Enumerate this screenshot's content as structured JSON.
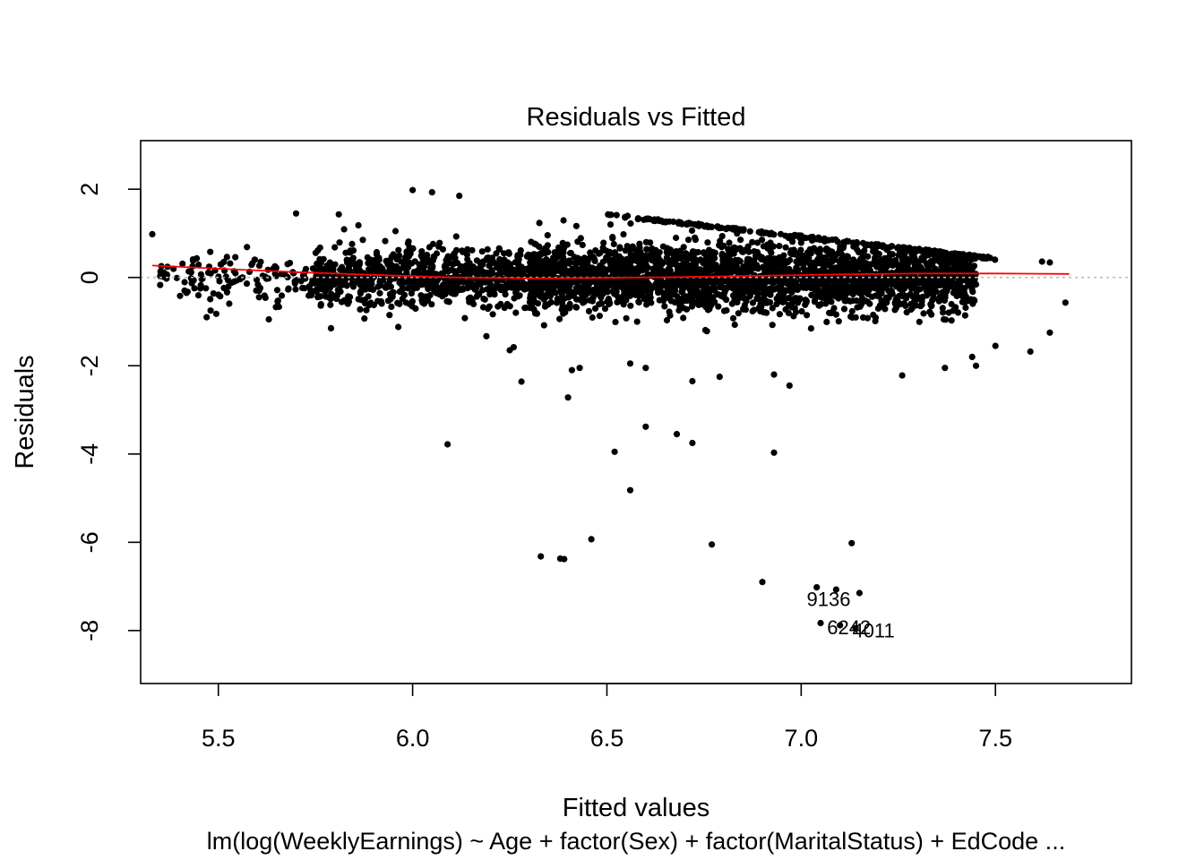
{
  "chart_data": {
    "type": "scatter",
    "title": "Residuals vs Fitted",
    "xlabel": "Fitted values",
    "ylabel": "Residuals",
    "caption": "lm(log(WeeklyEarnings) ~ Age + factor(Sex) + factor(MaritalStatus) + EdCode ...",
    "xlim": [
      5.3,
      7.85
    ],
    "ylim": [
      -9.2,
      3.1
    ],
    "x_ticks": [
      5.5,
      6.0,
      6.5,
      7.0,
      7.5
    ],
    "x_tick_labels": [
      "5.5",
      "6.0",
      "6.5",
      "7.0",
      "7.5"
    ],
    "y_ticks": [
      -8,
      -6,
      -4,
      -2,
      0,
      2
    ],
    "y_tick_labels": [
      "-8",
      "-6",
      "-4",
      "-2",
      "0",
      "2"
    ],
    "reference_line": {
      "y": 0,
      "style": "dotted",
      "color": "#bbbbbb"
    },
    "smoother": {
      "color": "#ff0000",
      "x": [
        5.33,
        5.5,
        5.7,
        5.9,
        6.1,
        6.3,
        6.5,
        6.7,
        6.9,
        7.1,
        7.3,
        7.5,
        7.69
      ],
      "y": [
        0.27,
        0.2,
        0.12,
        0.06,
        0.0,
        -0.02,
        -0.01,
        0.01,
        0.04,
        0.07,
        0.09,
        0.09,
        0.08
      ]
    },
    "point_color": "#000000",
    "point_clouds": [
      {
        "x_range": [
          6.3,
          7.45
        ],
        "residual_sd": 0.38,
        "count": 2600
      },
      {
        "x_range": [
          5.75,
          6.35
        ],
        "residual_sd": 0.33,
        "count": 800
      },
      {
        "x_range": [
          5.35,
          5.8
        ],
        "residual_sd": 0.28,
        "count": 150
      }
    ],
    "upper_envelope": {
      "x": [
        6.5,
        7.5
      ],
      "y": [
        1.45,
        0.45
      ]
    },
    "outliers": [
      {
        "x": 6.0,
        "y": 1.98
      },
      {
        "x": 6.05,
        "y": 1.93
      },
      {
        "x": 6.12,
        "y": 1.85
      },
      {
        "x": 5.33,
        "y": 0.98
      },
      {
        "x": 5.7,
        "y": 1.45
      },
      {
        "x": 5.81,
        "y": 1.43
      },
      {
        "x": 5.47,
        "y": -0.9
      },
      {
        "x": 5.48,
        "y": -0.75
      },
      {
        "x": 5.63,
        "y": -0.95
      },
      {
        "x": 5.79,
        "y": -1.15
      },
      {
        "x": 6.19,
        "y": -1.33
      },
      {
        "x": 6.26,
        "y": -1.58
      },
      {
        "x": 6.25,
        "y": -1.65
      },
      {
        "x": 6.28,
        "y": -2.36
      },
      {
        "x": 6.41,
        "y": -2.1
      },
      {
        "x": 6.43,
        "y": -2.05
      },
      {
        "x": 6.4,
        "y": -2.72
      },
      {
        "x": 6.56,
        "y": -1.95
      },
      {
        "x": 6.6,
        "y": -2.05
      },
      {
        "x": 6.72,
        "y": -2.35
      },
      {
        "x": 6.79,
        "y": -2.25
      },
      {
        "x": 6.93,
        "y": -2.2
      },
      {
        "x": 6.97,
        "y": -2.45
      },
      {
        "x": 7.26,
        "y": -2.22
      },
      {
        "x": 7.37,
        "y": -2.05
      },
      {
        "x": 7.45,
        "y": -2.0
      },
      {
        "x": 7.44,
        "y": -1.8
      },
      {
        "x": 7.5,
        "y": -1.55
      },
      {
        "x": 7.59,
        "y": -1.68
      },
      {
        "x": 7.64,
        "y": -1.25
      },
      {
        "x": 7.68,
        "y": -0.57
      },
      {
        "x": 7.62,
        "y": 0.36
      },
      {
        "x": 7.64,
        "y": 0.34
      },
      {
        "x": 6.09,
        "y": -3.78
      },
      {
        "x": 6.52,
        "y": -3.95
      },
      {
        "x": 6.56,
        "y": -4.82
      },
      {
        "x": 6.6,
        "y": -3.38
      },
      {
        "x": 6.68,
        "y": -3.55
      },
      {
        "x": 6.72,
        "y": -3.75
      },
      {
        "x": 6.93,
        "y": -3.97
      },
      {
        "x": 6.33,
        "y": -6.32
      },
      {
        "x": 6.38,
        "y": -6.37
      },
      {
        "x": 6.39,
        "y": -6.38
      },
      {
        "x": 6.46,
        "y": -5.93
      },
      {
        "x": 6.77,
        "y": -6.05
      },
      {
        "x": 7.13,
        "y": -6.02
      },
      {
        "x": 6.9,
        "y": -6.9
      },
      {
        "x": 7.04,
        "y": -7.02
      },
      {
        "x": 7.09,
        "y": -7.07
      },
      {
        "x": 7.15,
        "y": -7.15
      }
    ],
    "labeled_points": [
      {
        "label": "9136",
        "x": 7.05,
        "y": -7.83
      },
      {
        "label": "6242",
        "x": 7.1,
        "y": -7.88
      },
      {
        "label": "4011",
        "x": 7.14,
        "y": -7.95
      }
    ]
  }
}
